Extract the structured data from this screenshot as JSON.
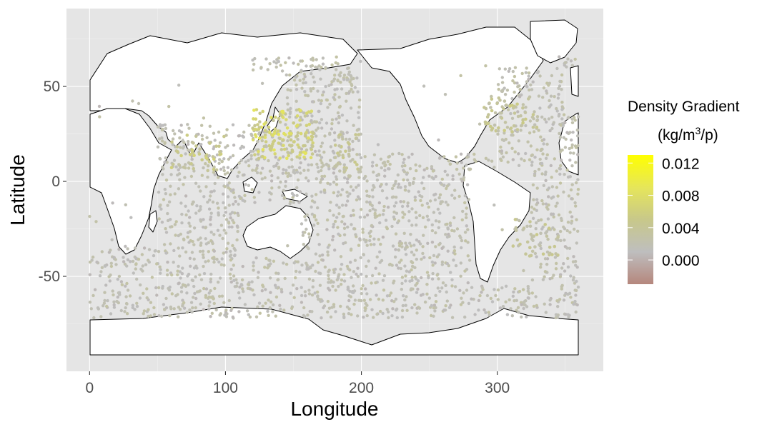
{
  "chart_data": {
    "type": "scatter",
    "title": "",
    "xlabel": "Longitude",
    "ylabel": "Latitude",
    "xlim": [
      -17,
      378
    ],
    "ylim": [
      -100,
      91
    ],
    "x_ticks": [
      0,
      100,
      200,
      300
    ],
    "y_ticks": [
      -50,
      0,
      50
    ],
    "x_tick_labels": [
      "0",
      "100",
      "200",
      "300"
    ],
    "y_tick_labels": [
      "-50",
      "0",
      "50"
    ],
    "grid": true,
    "panel_background": "#e5e5e5",
    "land_color": "#ffffff",
    "coastline_color": "#000000",
    "legend": {
      "title_line1": "Density Gradient",
      "title_line2_prefix": "(kg/m",
      "title_line2_sup": "3",
      "title_line2_suffix": "/p)",
      "placement": "right",
      "breaks": [
        0.012,
        0.008,
        0.004,
        0.0
      ],
      "break_labels": [
        "0.012",
        "0.008",
        "0.004",
        "0.000"
      ],
      "range": [
        -0.003,
        0.013
      ],
      "colors": [
        "#b5877d",
        "#bebebe",
        "#c8c88a",
        "#e6e65a",
        "#ffff00"
      ]
    },
    "clusters": [
      {
        "lon": [
          120,
          165
        ],
        "lat": [
          12,
          38
        ],
        "value": 0.0062,
        "count": 140
      },
      {
        "lon": [
          60,
          100
        ],
        "lat": [
          5,
          25
        ],
        "value": 0.0045,
        "count": 40
      },
      {
        "lon": [
          290,
          330
        ],
        "lat": [
          25,
          45
        ],
        "value": 0.004,
        "count": 60
      },
      {
        "lon": [
          180,
          200
        ],
        "lat": [
          5,
          25
        ],
        "value": 0.0035,
        "count": 40
      },
      {
        "lon": [
          310,
          345
        ],
        "lat": [
          -40,
          -20
        ],
        "value": 0.0035,
        "count": 40
      }
    ]
  }
}
